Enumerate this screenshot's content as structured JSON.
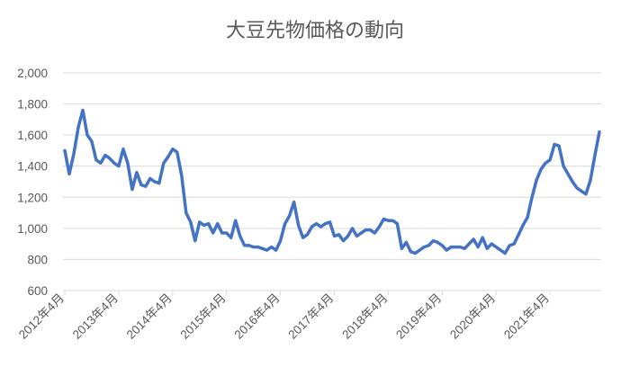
{
  "chart_data": {
    "type": "line",
    "title": "大豆先物価格の動向",
    "xlabel": "",
    "ylabel": "",
    "ylim": [
      600,
      2000
    ],
    "yticks": [
      "2,000",
      "1,800",
      "1,600",
      "1,400",
      "1,200",
      "1,000",
      "800",
      "600"
    ],
    "ytick_values": [
      2000,
      1800,
      1600,
      1400,
      1200,
      1000,
      800,
      600
    ],
    "xticks": [
      "2012年4月",
      "2013年4月",
      "2014年4月",
      "2015年4月",
      "2016年4月",
      "2017年4月",
      "2018年4月",
      "2019年4月",
      "2020年4月",
      "2021年4月"
    ],
    "grid": true,
    "legend": "none",
    "line_color": "#4472C4",
    "x_start": "2012年4月",
    "x_step": "1か月",
    "series": [
      {
        "values": [
          1500,
          1350,
          1480,
          1650,
          1760,
          1600,
          1560,
          1440,
          1420,
          1470,
          1450,
          1420,
          1400,
          1510,
          1420,
          1250,
          1360,
          1280,
          1270,
          1320,
          1300,
          1290,
          1420,
          1460,
          1510,
          1490,
          1340,
          1100,
          1040,
          920,
          1040,
          1020,
          1030,
          970,
          1030,
          970,
          970,
          940,
          1050,
          950,
          890,
          890,
          880,
          880,
          870,
          860,
          880,
          860,
          920,
          1030,
          1080,
          1170,
          1020,
          940,
          960,
          1010,
          1030,
          1010,
          1030,
          1040,
          950,
          960,
          920,
          950,
          1000,
          950,
          970,
          990,
          990,
          970,
          1010,
          1060,
          1050,
          1050,
          1030,
          870,
          910,
          850,
          840,
          860,
          880,
          890,
          920,
          910,
          890,
          860,
          880,
          880,
          880,
          870,
          900,
          930,
          880,
          940,
          870,
          900,
          880,
          860,
          840,
          890,
          900,
          960,
          1020,
          1070,
          1200,
          1310,
          1380,
          1420,
          1440,
          1540,
          1530,
          1400,
          1350,
          1300,
          1260,
          1240,
          1220,
          1310,
          1470,
          1620
        ]
      }
    ]
  }
}
